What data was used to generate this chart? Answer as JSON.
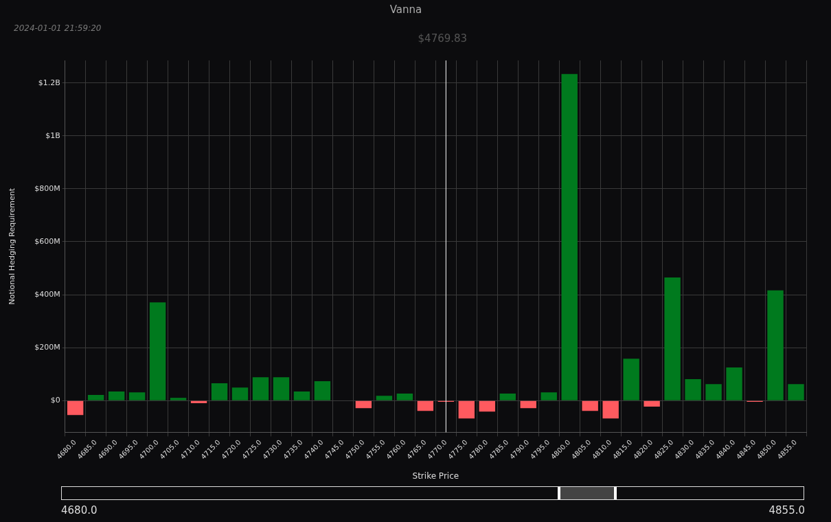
{
  "chart_data": {
    "type": "bar",
    "title": "Vanna",
    "subtitle": "2024-01-01 21:59:20",
    "xlabel": "Strike Price",
    "ylabel": "Notional Hedging Requirement",
    "categories": [
      "4680.0",
      "4685.0",
      "4690.0",
      "4695.0",
      "4700.0",
      "4705.0",
      "4710.0",
      "4715.0",
      "4720.0",
      "4725.0",
      "4730.0",
      "4735.0",
      "4740.0",
      "4745.0",
      "4750.0",
      "4755.0",
      "4760.0",
      "4765.0",
      "4770.0",
      "4775.0",
      "4780.0",
      "4785.0",
      "4790.0",
      "4795.0",
      "4800.0",
      "4805.0",
      "4810.0",
      "4815.0",
      "4820.0",
      "4825.0",
      "4830.0",
      "4835.0",
      "4840.0",
      "4845.0",
      "4850.0",
      "4855.0"
    ],
    "values": [
      -55000000,
      21000000,
      34000000,
      31000000,
      371000000,
      10000000,
      -10000000,
      65000000,
      49000000,
      88000000,
      88000000,
      34000000,
      73000000,
      0,
      -29000000,
      18000000,
      26000000,
      -39000000,
      -5000000,
      -68000000,
      -42000000,
      26000000,
      -29000000,
      31000000,
      1234000000,
      -39000000,
      -68000000,
      158000000,
      -23000000,
      465000000,
      81000000,
      62000000,
      125000000,
      -5000000,
      416000000,
      62000000
    ],
    "colors": [
      "#ff5a5f",
      "#007a1e",
      "#007a1e",
      "#007a1e",
      "#007a1e",
      "#007a1e",
      "#ff5a5f",
      "#007a1e",
      "#007a1e",
      "#007a1e",
      "#007a1e",
      "#007a1e",
      "#007a1e",
      "#007a1e",
      "#ff5a5f",
      "#007a1e",
      "#007a1e",
      "#ff5a5f",
      "#ff5a5f",
      "#ff5a5f",
      "#ff5a5f",
      "#007a1e",
      "#ff5a5f",
      "#007a1e",
      "#007a1e",
      "#ff5a5f",
      "#ff5a5f",
      "#007a1e",
      "#ff5a5f",
      "#007a1e",
      "#007a1e",
      "#007a1e",
      "#007a1e",
      "#ff5a5f",
      "#007a1e",
      "#007a1e"
    ],
    "ylim": [
      -120000000,
      1285000000
    ],
    "yticks": [
      {
        "value": 0,
        "label": "$0"
      },
      {
        "value": 200000000,
        "label": "$200M"
      },
      {
        "value": 400000000,
        "label": "$400M"
      },
      {
        "value": 600000000,
        "label": "$600M"
      },
      {
        "value": 800000000,
        "label": "$800M"
      },
      {
        "value": 1000000000,
        "label": "$1B"
      },
      {
        "value": 1200000000,
        "label": "$1.2B"
      }
    ],
    "grid": true,
    "legend": false,
    "ref_lines": [
      {
        "axis": "x",
        "value": "4770.0",
        "label": "$4769.83",
        "color": "#ffffff"
      }
    ],
    "annotations": [
      "4680.0",
      "4855.0"
    ]
  }
}
